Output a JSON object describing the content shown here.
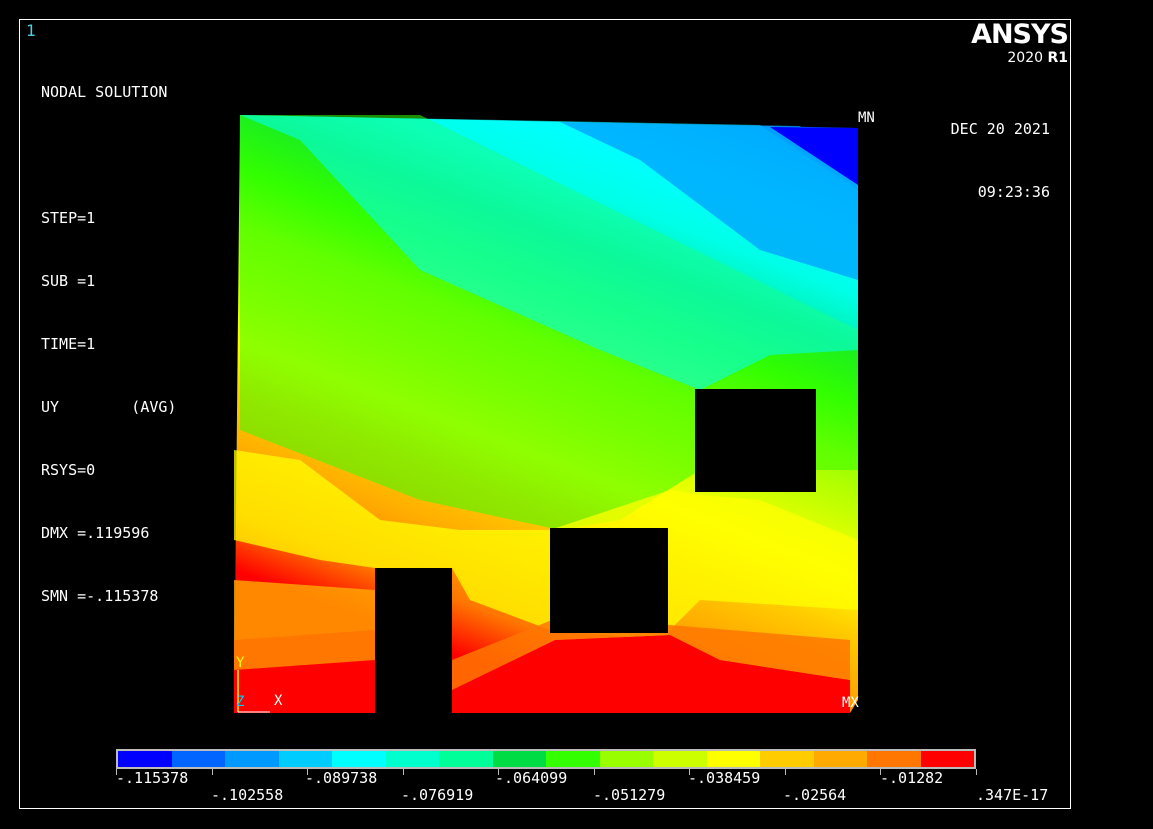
{
  "window_number": "1",
  "info_lines": [
    "NODAL SOLUTION",
    "",
    "STEP=1",
    "SUB =1",
    "TIME=1",
    "UY        (AVG)",
    "RSYS=0",
    "DMX =.119596",
    "SMN =-.115378"
  ],
  "logo": {
    "brand": "ANSYS",
    "version": "2020",
    "release": "R1"
  },
  "date": "DEC 20 2021",
  "time": "09:23:36",
  "markers": {
    "min": "MN",
    "max": "MX",
    "axis_y": "Y",
    "axis_z": "Z",
    "axis_x": "X"
  },
  "legend": {
    "colors": [
      "#0000ff",
      "#0066ff",
      "#0099ff",
      "#00ccff",
      "#00ffff",
      "#00ffcc",
      "#00ff99",
      "#00dd44",
      "#33ff00",
      "#99ff00",
      "#ccff00",
      "#ffff00",
      "#ffcc00",
      "#ffaa00",
      "#ff7700",
      "#ff0000"
    ],
    "labels_top": [
      "-.115378",
      "-.089738",
      "-.064099",
      "-.038459",
      "-.01282"
    ],
    "labels_bottom": [
      "-.102558",
      "-.076919",
      "-.051279",
      "-.02564",
      ".347E-17"
    ]
  }
}
